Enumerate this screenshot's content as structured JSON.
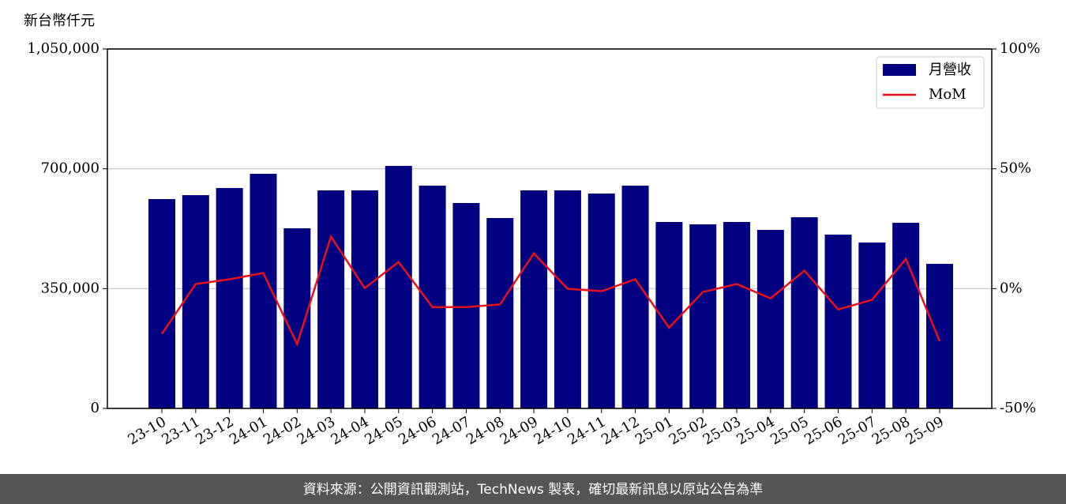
{
  "chart_data": {
    "type": "bar",
    "y_label": "新台幣仟元",
    "categories": [
      "23-10",
      "23-11",
      "23-12",
      "24-01",
      "24-02",
      "24-03",
      "24-04",
      "24-05",
      "24-06",
      "24-07",
      "24-08",
      "24-09",
      "24-10",
      "24-11",
      "24-12",
      "25-01",
      "25-02",
      "25-03",
      "25-04",
      "25-05",
      "25-06",
      "25-07",
      "25-08",
      "25-09"
    ],
    "series": [
      {
        "name": "月營收",
        "type": "bar",
        "color": "#000080",
        "values": [
          611500,
          623000,
          643800,
          685400,
          526200,
          636900,
          636900,
          708500,
          650800,
          600000,
          556200,
          636900,
          636900,
          627700,
          650800,
          544600,
          537700,
          544600,
          521500,
          558500,
          507700,
          484600,
          542300,
          422300
        ]
      },
      {
        "name": "MoM",
        "type": "line",
        "axis": "y2",
        "color": "#e8101a",
        "values": [
          -18.9,
          1.9,
          3.9,
          6.5,
          -23.2,
          21.7,
          0.2,
          11.1,
          -7.7,
          -7.7,
          -6.6,
          14.7,
          -0.1,
          -1.1,
          3.9,
          -16.3,
          -1.4,
          1.9,
          -4.1,
          7.5,
          -8.7,
          -4.7,
          12.4,
          -21.9
        ]
      }
    ],
    "ylim": [
      0,
      1050000
    ],
    "yticks": [
      0,
      {
        "value": 350000,
        "label": "350,000"
      },
      {
        "value": 700000,
        "label": "700,000"
      },
      {
        "value": 1050000,
        "label": "1,050,000"
      }
    ],
    "y2lim": [
      -50,
      100
    ],
    "y2ticks": [
      {
        "value": -50,
        "label": "-50%"
      },
      {
        "value": 0,
        "label": "0%"
      },
      {
        "value": 50,
        "label": "50%"
      },
      {
        "value": 100,
        "label": "100%"
      }
    ],
    "grid": true,
    "legend": "upper right"
  },
  "footer": "資料來源：公開資訊觀測站，TechNews 製表，確切最新訊息以原站公告為準"
}
